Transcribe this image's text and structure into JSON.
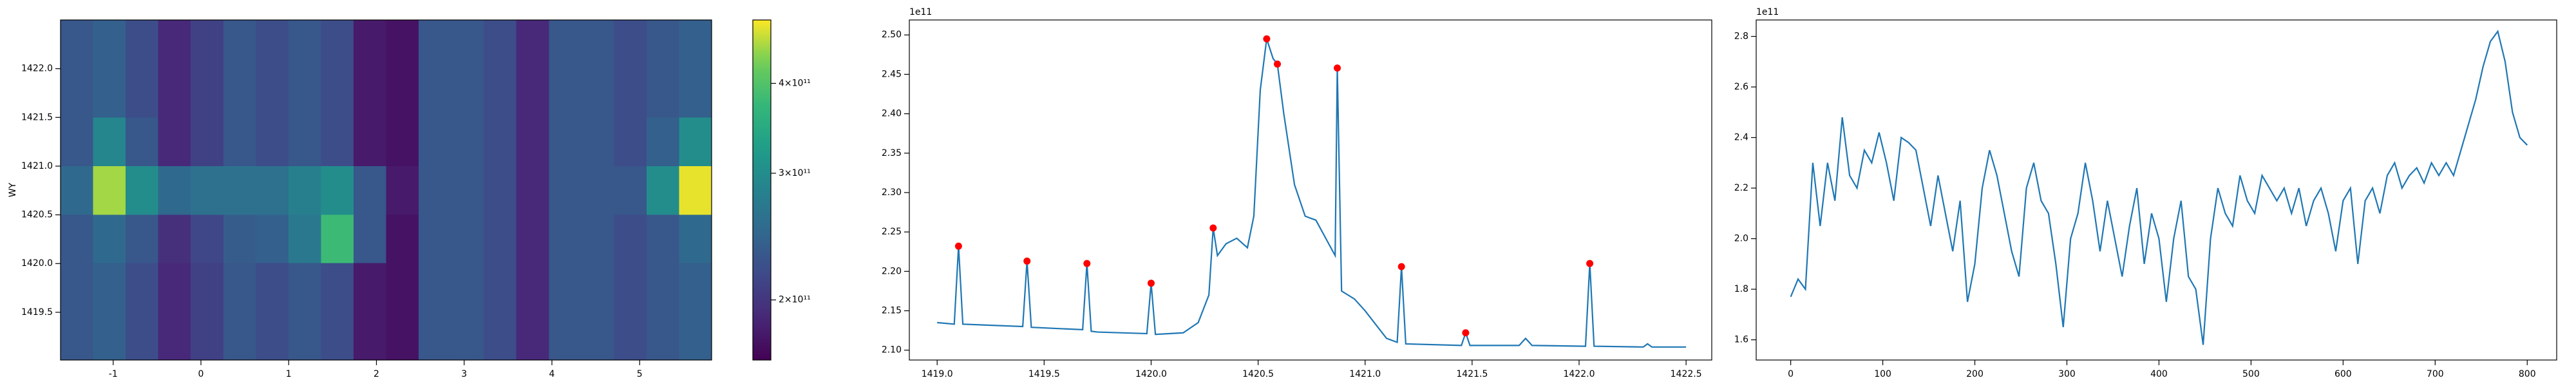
{
  "chart_data": [
    {
      "type": "heatmap",
      "ylabel": "WY",
      "xlim": [
        -1.6,
        5.82
      ],
      "ylim": [
        1419.01,
        1422.5
      ],
      "xticks": [
        -1,
        0,
        1,
        2,
        3,
        4,
        5
      ],
      "yticks": [
        {
          "value": 1419.5,
          "label": "1419.5"
        },
        {
          "value": 1420.0,
          "label": "1420.0"
        },
        {
          "value": 1420.5,
          "label": "1420.5"
        },
        {
          "value": 1421.0,
          "label": "1421.0"
        },
        {
          "value": 1421.5,
          "label": "1421.5"
        },
        {
          "value": 1422.0,
          "label": "1422.0"
        }
      ],
      "z": [
        [
          230000000000.0,
          240000000000.0,
          220000000000.0,
          190000000000.0,
          210000000000.0,
          230000000000.0,
          220000000000.0,
          230000000000.0,
          220000000000.0,
          180000000000.0,
          175000000000.0,
          230000000000.0,
          230000000000.0,
          220000000000.0,
          190000000000.0,
          230000000000.0,
          230000000000.0,
          220000000000.0,
          230000000000.0,
          240000000000.0
        ],
        [
          230000000000.0,
          240000000000.0,
          220000000000.0,
          190000000000.0,
          210000000000.0,
          230000000000.0,
          220000000000.0,
          230000000000.0,
          220000000000.0,
          180000000000.0,
          175000000000.0,
          230000000000.0,
          230000000000.0,
          220000000000.0,
          190000000000.0,
          230000000000.0,
          230000000000.0,
          220000000000.0,
          230000000000.0,
          240000000000.0
        ],
        [
          230000000000.0,
          250000000000.0,
          230000000000.0,
          195000000000.0,
          215000000000.0,
          235000000000.0,
          240000000000.0,
          270000000000.0,
          380000000000.0,
          230000000000.0,
          175000000000.0,
          230000000000.0,
          230000000000.0,
          220000000000.0,
          190000000000.0,
          230000000000.0,
          230000000000.0,
          220000000000.0,
          230000000000.0,
          250000000000.0
        ],
        [
          250000000000.0,
          450000000000.0,
          300000000000.0,
          250000000000.0,
          260000000000.0,
          260000000000.0,
          260000000000.0,
          280000000000.0,
          300000000000.0,
          230000000000.0,
          180000000000.0,
          230000000000.0,
          230000000000.0,
          220000000000.0,
          190000000000.0,
          230000000000.0,
          230000000000.0,
          230000000000.0,
          300000000000.0,
          480000000000.0
        ],
        [
          230000000000.0,
          290000000000.0,
          230000000000.0,
          190000000000.0,
          210000000000.0,
          230000000000.0,
          220000000000.0,
          230000000000.0,
          220000000000.0,
          180000000000.0,
          175000000000.0,
          230000000000.0,
          230000000000.0,
          220000000000.0,
          190000000000.0,
          230000000000.0,
          230000000000.0,
          220000000000.0,
          240000000000.0,
          300000000000.0
        ],
        [
          230000000000.0,
          240000000000.0,
          220000000000.0,
          190000000000.0,
          210000000000.0,
          230000000000.0,
          220000000000.0,
          230000000000.0,
          220000000000.0,
          180000000000.0,
          175000000000.0,
          230000000000.0,
          230000000000.0,
          220000000000.0,
          190000000000.0,
          230000000000.0,
          230000000000.0,
          220000000000.0,
          230000000000.0,
          240000000000.0
        ],
        [
          230000000000.0,
          240000000000.0,
          220000000000.0,
          190000000000.0,
          210000000000.0,
          230000000000.0,
          220000000000.0,
          230000000000.0,
          220000000000.0,
          180000000000.0,
          175000000000.0,
          230000000000.0,
          230000000000.0,
          220000000000.0,
          190000000000.0,
          230000000000.0,
          230000000000.0,
          220000000000.0,
          230000000000.0,
          240000000000.0
        ]
      ],
      "colorbar": {
        "scale": "log",
        "colormap": "viridis",
        "lim": [
          165000000000.0,
          490000000000.0
        ],
        "ticks": [
          {
            "value": 200000000000.0,
            "label": "2×10¹¹"
          },
          {
            "value": 300000000000.0,
            "label": "3×10¹¹"
          },
          {
            "value": 400000000000.0,
            "label": "4×10¹¹"
          }
        ]
      }
    },
    {
      "type": "line",
      "offset_text": "1e11",
      "color": "#1f77b4",
      "xlim": [
        1418.87,
        1422.62
      ],
      "ylim": [
        2.0875,
        2.519
      ],
      "xticks": [
        {
          "value": 1419.0,
          "label": "1419.0"
        },
        {
          "value": 1419.5,
          "label": "1419.5"
        },
        {
          "value": 1420.0,
          "label": "1420.0"
        },
        {
          "value": 1420.5,
          "label": "1420.5"
        },
        {
          "value": 1421.0,
          "label": "1421.0"
        },
        {
          "value": 1421.5,
          "label": "1421.5"
        },
        {
          "value": 1422.0,
          "label": "1422.0"
        },
        {
          "value": 1422.5,
          "label": "1422.5"
        }
      ],
      "yticks": [
        {
          "value": 2.1,
          "label": "2.10"
        },
        {
          "value": 2.15,
          "label": "2.15"
        },
        {
          "value": 2.2,
          "label": "2.20"
        },
        {
          "value": 2.25,
          "label": "2.25"
        },
        {
          "value": 2.3,
          "label": "2.30"
        },
        {
          "value": 2.35,
          "label": "2.35"
        },
        {
          "value": 2.4,
          "label": "2.40"
        },
        {
          "value": 2.45,
          "label": "2.45"
        },
        {
          "value": 2.5,
          "label": "2.50"
        }
      ],
      "x": [
        1419.0,
        1419.08,
        1419.1,
        1419.12,
        1419.4,
        1419.42,
        1419.44,
        1419.68,
        1419.7,
        1419.72,
        1419.75,
        1419.98,
        1420.0,
        1420.02,
        1420.15,
        1420.22,
        1420.27,
        1420.29,
        1420.31,
        1420.35,
        1420.4,
        1420.45,
        1420.48,
        1420.51,
        1420.54,
        1420.57,
        1420.59,
        1420.62,
        1420.67,
        1420.72,
        1420.77,
        1420.82,
        1420.86,
        1420.87,
        1420.89,
        1420.95,
        1421.0,
        1421.1,
        1421.15,
        1421.17,
        1421.19,
        1421.45,
        1421.47,
        1421.49,
        1421.72,
        1421.75,
        1421.78,
        1422.03,
        1422.05,
        1422.07,
        1422.3,
        1422.32,
        1422.34,
        1422.5
      ],
      "values": [
        2.135,
        2.133,
        2.232,
        2.133,
        2.13,
        2.213,
        2.129,
        2.126,
        2.21,
        2.124,
        2.123,
        2.121,
        2.185,
        2.12,
        2.122,
        2.135,
        2.17,
        2.255,
        2.22,
        2.235,
        2.242,
        2.23,
        2.27,
        2.43,
        2.495,
        2.47,
        2.463,
        2.4,
        2.31,
        2.27,
        2.265,
        2.24,
        2.22,
        2.458,
        2.175,
        2.165,
        2.15,
        2.115,
        2.11,
        2.206,
        2.108,
        2.106,
        2.122,
        2.106,
        2.106,
        2.115,
        2.106,
        2.105,
        2.21,
        2.105,
        2.104,
        2.108,
        2.104,
        2.104
      ],
      "peaks": {
        "color": "red",
        "x": [
          1419.1,
          1419.42,
          1419.7,
          1420.0,
          1420.29,
          1420.54,
          1420.59,
          1420.87,
          1421.17,
          1421.47,
          1422.05
        ],
        "values": [
          2.232,
          2.213,
          2.21,
          2.185,
          2.255,
          2.495,
          2.463,
          2.458,
          2.206,
          2.122,
          2.21
        ]
      }
    },
    {
      "type": "line",
      "offset_text": "1e11",
      "color": "#1f77b4",
      "xlim": [
        -37.5,
        832
      ],
      "ylim": [
        1.52,
        2.865
      ],
      "xticks": [
        0,
        100,
        200,
        300,
        400,
        500,
        600,
        700,
        800
      ],
      "yticks": [
        1.6,
        1.8,
        {
          "value": 2.0,
          "label": "2.0"
        },
        2.2,
        2.4,
        2.6,
        2.8
      ],
      "x": [
        0,
        8,
        16,
        24,
        32,
        40,
        48,
        56,
        64,
        72,
        80,
        88,
        96,
        104,
        112,
        120,
        128,
        136,
        144,
        152,
        160,
        168,
        176,
        184,
        192,
        200,
        208,
        216,
        224,
        232,
        240,
        248,
        256,
        264,
        272,
        280,
        288,
        296,
        304,
        312,
        320,
        328,
        336,
        344,
        352,
        360,
        368,
        376,
        384,
        392,
        400,
        408,
        416,
        424,
        432,
        440,
        448,
        456,
        464,
        472,
        480,
        488,
        496,
        504,
        512,
        520,
        528,
        536,
        544,
        552,
        560,
        568,
        576,
        584,
        592,
        600,
        608,
        616,
        624,
        632,
        640,
        648,
        656,
        664,
        672,
        680,
        688,
        696,
        704,
        712,
        720,
        728,
        736,
        744,
        752,
        760,
        768,
        776,
        784,
        792,
        800
      ],
      "values": [
        1.77,
        1.84,
        1.8,
        2.3,
        2.05,
        2.3,
        2.15,
        2.48,
        2.25,
        2.2,
        2.35,
        2.3,
        2.42,
        2.3,
        2.15,
        2.4,
        2.38,
        2.35,
        2.2,
        2.05,
        2.25,
        2.1,
        1.95,
        2.15,
        1.75,
        1.9,
        2.2,
        2.35,
        2.25,
        2.1,
        1.95,
        1.85,
        2.2,
        2.3,
        2.15,
        2.1,
        1.9,
        1.65,
        2.0,
        2.1,
        2.3,
        2.15,
        1.95,
        2.15,
        2.0,
        1.85,
        2.05,
        2.2,
        1.9,
        2.1,
        2.0,
        1.75,
        2.0,
        2.15,
        1.85,
        1.8,
        1.58,
        2.0,
        2.2,
        2.1,
        2.05,
        2.25,
        2.15,
        2.1,
        2.25,
        2.2,
        2.15,
        2.2,
        2.1,
        2.2,
        2.05,
        2.15,
        2.2,
        2.1,
        1.95,
        2.15,
        2.2,
        1.9,
        2.15,
        2.2,
        2.1,
        2.25,
        2.3,
        2.2,
        2.25,
        2.28,
        2.22,
        2.3,
        2.25,
        2.3,
        2.25,
        2.35,
        2.45,
        2.55,
        2.68,
        2.78,
        2.82,
        2.7,
        2.5,
        2.4,
        2.37
      ]
    }
  ]
}
